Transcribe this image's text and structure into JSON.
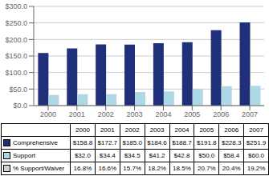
{
  "chart_data": {
    "type": "bar",
    "categories": [
      "2000",
      "2001",
      "2002",
      "2003",
      "2004",
      "2005",
      "2006",
      "2007"
    ],
    "series": [
      {
        "name": "Comprehensive",
        "color": "#1f2f7a",
        "values": [
          158.8,
          172.7,
          185.0,
          184.6,
          188.7,
          191.8,
          228.3,
          251.9
        ],
        "value_labels": [
          "$158.8",
          "$172.7",
          "$185.0",
          "$184.6",
          "$188.7",
          "$191.8",
          "$228.3",
          "$251.9"
        ]
      },
      {
        "name": "Support",
        "color": "#add8e6",
        "values": [
          32.0,
          34.4,
          34.5,
          41.2,
          42.8,
          50.0,
          58.4,
          60.0
        ],
        "value_labels": [
          "$32.0",
          "$34.4",
          "$34.5",
          "$41.2",
          "$42.8",
          "$50.0",
          "$58.4",
          "$60.0"
        ]
      }
    ],
    "table_rows": [
      {
        "name": "% Support/Waiver",
        "color": "#d3d3d3",
        "values": [
          16.8,
          16.6,
          15.7,
          18.2,
          18.5,
          20.7,
          20.4,
          19.2
        ],
        "value_labels": [
          "16.8%",
          "16.6%",
          "15.7%",
          "18.2%",
          "18.5%",
          "20.7%",
          "20.4%",
          "19.2%"
        ]
      }
    ],
    "ylim": [
      0,
      300
    ],
    "yticks": [
      {
        "value": 0,
        "label": "$0.0"
      },
      {
        "value": 50,
        "label": "$50.0"
      },
      {
        "value": 100,
        "label": "$100.0"
      },
      {
        "value": 150,
        "label": "$150.0"
      },
      {
        "value": 200,
        "label": "$200.0"
      },
      {
        "value": 250,
        "label": "$250.0"
      },
      {
        "value": 300,
        "label": "$300.0"
      }
    ],
    "grid": true
  }
}
